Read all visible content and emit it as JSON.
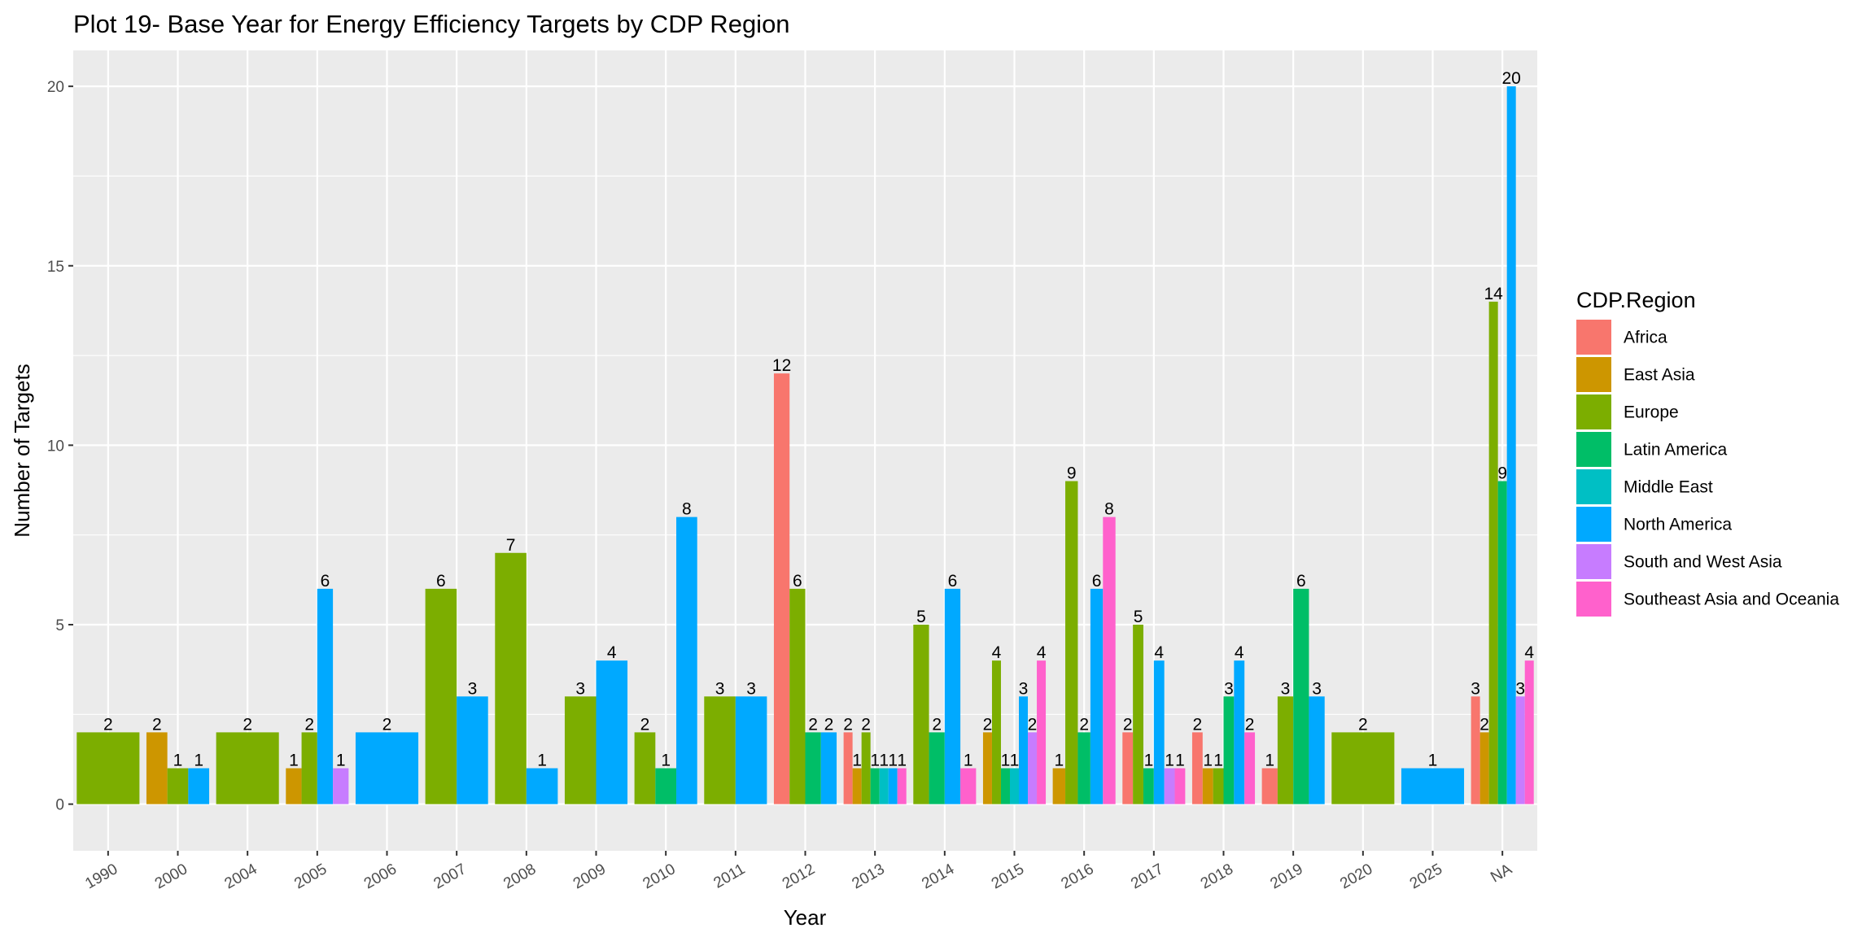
{
  "chart_data": {
    "type": "bar",
    "title": "Plot 19- Base Year for Energy Efficiency Targets by CDP Region",
    "xlabel": "Year",
    "ylabel": "Number of Targets",
    "ylim": [
      -1.3,
      21.0
    ],
    "y_ticks": [
      0,
      5,
      10,
      15,
      20
    ],
    "grid": true,
    "legend_title": "CDP.Region",
    "legend_position": "right",
    "categories": [
      "1990",
      "2000",
      "2004",
      "2005",
      "2006",
      "2007",
      "2008",
      "2009",
      "2010",
      "2011",
      "2012",
      "2013",
      "2014",
      "2015",
      "2016",
      "2017",
      "2018",
      "2019",
      "2020",
      "2025",
      "NA"
    ],
    "series": [
      {
        "name": "Africa",
        "color": "#F8766D",
        "values": [
          null,
          null,
          null,
          null,
          null,
          null,
          null,
          null,
          null,
          null,
          12,
          2,
          null,
          null,
          null,
          2,
          2,
          1,
          null,
          null,
          3
        ]
      },
      {
        "name": "East Asia",
        "color": "#CD9600",
        "values": [
          null,
          2,
          null,
          1,
          null,
          null,
          null,
          null,
          null,
          null,
          null,
          1,
          null,
          2,
          1,
          null,
          1,
          null,
          null,
          null,
          2
        ]
      },
      {
        "name": "Europe",
        "color": "#7CAE00",
        "values": [
          2,
          1,
          2,
          2,
          null,
          6,
          7,
          3,
          2,
          3,
          6,
          2,
          5,
          4,
          9,
          5,
          1,
          3,
          2,
          null,
          14
        ]
      },
      {
        "name": "Latin America",
        "color": "#00BE67",
        "values": [
          null,
          null,
          null,
          null,
          null,
          null,
          null,
          null,
          1,
          null,
          2,
          1,
          2,
          1,
          2,
          1,
          3,
          6,
          null,
          null,
          9
        ]
      },
      {
        "name": "Middle East",
        "color": "#00BFC4",
        "values": [
          null,
          null,
          null,
          null,
          null,
          null,
          null,
          null,
          null,
          null,
          null,
          1,
          null,
          1,
          null,
          null,
          null,
          null,
          null,
          null,
          null
        ]
      },
      {
        "name": "North America",
        "color": "#00A9FF",
        "values": [
          null,
          1,
          null,
          6,
          2,
          3,
          1,
          4,
          8,
          3,
          2,
          1,
          6,
          3,
          6,
          4,
          4,
          3,
          null,
          1,
          20
        ]
      },
      {
        "name": "South and West Asia",
        "color": "#C77CFF",
        "values": [
          null,
          null,
          null,
          1,
          null,
          null,
          null,
          null,
          null,
          null,
          null,
          null,
          null,
          2,
          null,
          1,
          null,
          null,
          null,
          null,
          3
        ]
      },
      {
        "name": "Southeast Asia and Oceania",
        "color": "#FF61CC",
        "values": [
          null,
          null,
          null,
          null,
          null,
          null,
          null,
          null,
          null,
          null,
          null,
          1,
          1,
          4,
          8,
          1,
          2,
          null,
          null,
          null,
          4
        ]
      }
    ]
  }
}
